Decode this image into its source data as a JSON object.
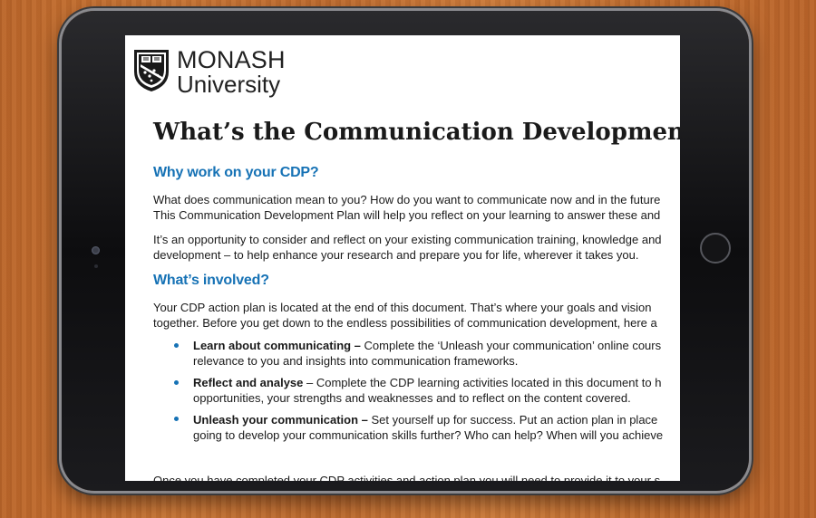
{
  "logo": {
    "name": "MONASH",
    "sub": "University",
    "crest_icon": "monash-crest-icon"
  },
  "document": {
    "title": "What’s the Communication Development",
    "sections": [
      {
        "heading": "Why work on your CDP?",
        "paragraphs": [
          {
            "line1": "What does communication mean to you? How do you want to communicate now and in the future",
            "line2": "This Communication Development Plan will help you reflect on your learning to answer these and"
          },
          {
            "line1": "It’s an opportunity to consider and reflect on your existing communication training, knowledge and",
            "line2": "development – to help enhance your research and prepare you for life, wherever it takes you."
          }
        ]
      },
      {
        "heading": "What’s involved?",
        "paragraphs": [
          {
            "line1": "Your CDP action plan is located at the end of this document. That’s where your goals and vision",
            "line2": "together. Before you get down to the endless possibilities of communication development, here a"
          }
        ],
        "bullets": [
          {
            "bold": "Learn about communicating –",
            "rest": " Complete the ‘Unleash your communication’ online cours",
            "line2": "relevance to you and insights into communication frameworks."
          },
          {
            "bold": "Reflect and analyse",
            "rest": " – Complete the CDP learning activities located in this document to h",
            "line2": "opportunities, your strengths and weaknesses and to reflect on the content covered."
          },
          {
            "bold": "Unleash your communication –",
            "rest": " Set yourself up for success. Put an action plan in place",
            "line2": "going to develop your communication skills further? Who can help? When will you achieve"
          }
        ]
      }
    ],
    "footer_line": "Once you have completed your CDP activities and action plan you will need to provide it to your s"
  },
  "colors": {
    "heading_blue": "#1672b5",
    "text": "#1a1a1a"
  }
}
